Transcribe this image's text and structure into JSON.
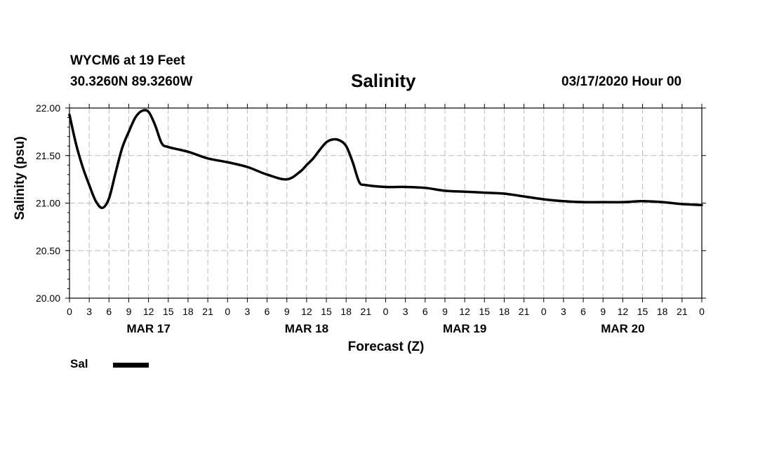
{
  "header": {
    "station": "WYCM6 at 19 Feet",
    "coords": "30.3260N 89.3260W",
    "run": "03/17/2020 Hour 00"
  },
  "chart_data": {
    "type": "line",
    "title": "Salinity",
    "xlabel": "Forecast (Z)",
    "ylabel": "Salinity (psu)",
    "ylim": [
      20.0,
      22.0
    ],
    "yticks": [
      "20.00",
      "20.50",
      "21.00",
      "21.50",
      "22.00"
    ],
    "xlim": [
      0,
      96
    ],
    "xtick_labels": [
      "0",
      "3",
      "6",
      "9",
      "12",
      "15",
      "18",
      "21",
      "0",
      "3",
      "6",
      "9",
      "12",
      "15",
      "18",
      "21",
      "0",
      "3",
      "6",
      "9",
      "12",
      "15",
      "18",
      "21",
      "0",
      "3",
      "6",
      "9",
      "12",
      "15",
      "18",
      "21",
      "0"
    ],
    "date_labels": [
      {
        "label": "MAR 17",
        "hour": 12
      },
      {
        "label": "MAR 18",
        "hour": 36
      },
      {
        "label": "MAR 19",
        "hour": 60
      },
      {
        "label": "MAR 20",
        "hour": 84
      }
    ],
    "grid": true,
    "legend_placement": "bottom-left",
    "series": [
      {
        "name": "Sal",
        "color": "#000000",
        "x": [
          0,
          1,
          2,
          3,
          4,
          5,
          6,
          7,
          8,
          9,
          10,
          11,
          12,
          13,
          14,
          15,
          18,
          21,
          24,
          27,
          30,
          33,
          35,
          36,
          37,
          38,
          39,
          40,
          41,
          42,
          43,
          44,
          45,
          48,
          51,
          54,
          57,
          60,
          63,
          66,
          69,
          72,
          75,
          78,
          81,
          84,
          87,
          90,
          93,
          96
        ],
        "values": [
          21.93,
          21.62,
          21.38,
          21.19,
          21.02,
          20.95,
          21.05,
          21.32,
          21.58,
          21.75,
          21.9,
          21.97,
          21.96,
          21.82,
          21.63,
          21.59,
          21.54,
          21.47,
          21.43,
          21.38,
          21.3,
          21.25,
          21.33,
          21.4,
          21.47,
          21.56,
          21.64,
          21.67,
          21.66,
          21.6,
          21.43,
          21.22,
          21.19,
          21.17,
          21.17,
          21.16,
          21.13,
          21.12,
          21.11,
          21.1,
          21.07,
          21.04,
          21.02,
          21.01,
          21.01,
          21.01,
          21.02,
          21.01,
          20.99,
          20.98
        ]
      }
    ]
  }
}
